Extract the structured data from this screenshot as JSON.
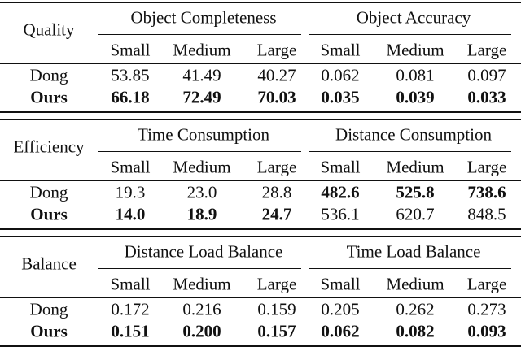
{
  "tables": [
    {
      "label": "Quality",
      "groups": [
        "Object Completeness",
        "Object Accuracy"
      ],
      "sizes": [
        "Small",
        "Medium",
        "Large",
        "Small",
        "Medium",
        "Large"
      ],
      "rows": [
        {
          "method": "Dong",
          "values": [
            "53.85",
            "41.49",
            "40.27",
            "0.062",
            "0.081",
            "0.097"
          ],
          "bold": [
            false,
            false,
            false,
            false,
            false,
            false
          ]
        },
        {
          "method": "Ours",
          "values": [
            "66.18",
            "72.49",
            "70.03",
            "0.035",
            "0.039",
            "0.033"
          ],
          "bold": [
            true,
            true,
            true,
            true,
            true,
            true
          ]
        }
      ]
    },
    {
      "label": "Efficiency",
      "groups": [
        "Time Consumption",
        "Distance Consumption"
      ],
      "sizes": [
        "Small",
        "Medium",
        "Large",
        "Small",
        "Medium",
        "Large"
      ],
      "rows": [
        {
          "method": "Dong",
          "values": [
            "19.3",
            "23.0",
            "28.8",
            "482.6",
            "525.8",
            "738.6"
          ],
          "bold": [
            false,
            false,
            false,
            true,
            true,
            true
          ]
        },
        {
          "method": "Ours",
          "values": [
            "14.0",
            "18.9",
            "24.7",
            "536.1",
            "620.7",
            "848.5"
          ],
          "bold": [
            true,
            true,
            true,
            false,
            false,
            false
          ]
        }
      ]
    },
    {
      "label": "Balance",
      "groups": [
        "Distance Load Balance",
        "Time Load Balance"
      ],
      "sizes": [
        "Small",
        "Medium",
        "Large",
        "Small",
        "Medium",
        "Large"
      ],
      "rows": [
        {
          "method": "Dong",
          "values": [
            "0.172",
            "0.216",
            "0.159",
            "0.205",
            "0.262",
            "0.273"
          ],
          "bold": [
            false,
            false,
            false,
            false,
            false,
            false
          ]
        },
        {
          "method": "Ours",
          "values": [
            "0.151",
            "0.200",
            "0.157",
            "0.062",
            "0.082",
            "0.093"
          ],
          "bold": [
            true,
            true,
            true,
            true,
            true,
            true
          ]
        }
      ]
    }
  ]
}
